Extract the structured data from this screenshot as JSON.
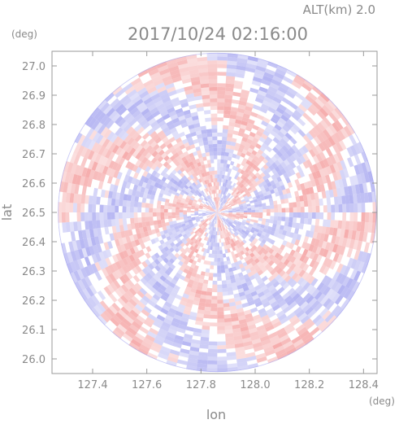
{
  "header": {
    "altitude_label": "ALT(km)  2.0",
    "timestamp": "2017/10/24 02:16:00"
  },
  "chart_data": {
    "type": "heatmap",
    "title": "2017/10/24 02:16:00",
    "xlabel": "lon",
    "ylabel": "lat",
    "x_unit": "(deg)",
    "y_unit": "(deg)",
    "xlim": [
      127.25,
      128.45
    ],
    "ylim": [
      25.95,
      27.05
    ],
    "x_ticks": [
      127.4,
      127.6,
      127.8,
      128.0,
      128.2,
      128.4
    ],
    "x_tick_labels": [
      "127.4",
      "127.6",
      "127.8",
      "128.0",
      "128.2",
      "128.4"
    ],
    "y_ticks": [
      26.0,
      26.1,
      26.2,
      26.3,
      26.4,
      26.5,
      26.6,
      26.7,
      26.8,
      26.9,
      27.0
    ],
    "y_tick_labels": [
      "26.0",
      "26.1",
      "26.2",
      "26.3",
      "26.4",
      "26.5",
      "26.6",
      "26.7",
      "26.8",
      "26.9",
      "27.0"
    ],
    "radar_center": {
      "lon": 127.86,
      "lat": 26.5
    },
    "radar_range": {
      "lon_radius": 0.6,
      "lat_radius": 0.545
    },
    "colormap": {
      "positive": "#f4a0a0",
      "negative": "#a8a8f0",
      "zero": "#ffffff"
    },
    "grid": false
  }
}
